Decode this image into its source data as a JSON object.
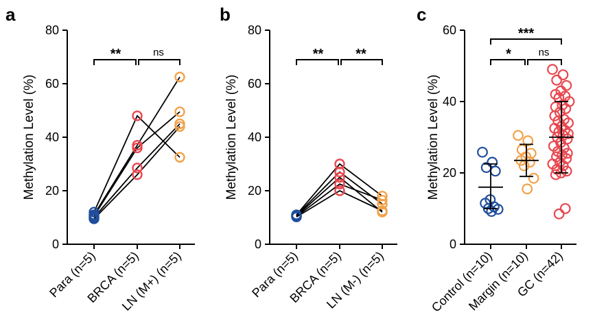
{
  "chart_data": [
    {
      "type": "scatter",
      "panel": "a",
      "ylabel": "Methylation Level (%)",
      "ylim": [
        0,
        80
      ],
      "yticks": [
        0,
        20,
        40,
        60,
        80
      ],
      "categories": [
        "Para (n=5)",
        "BRCA (n=5)",
        "LN (M+) (n=5)"
      ],
      "paired": true,
      "series": [
        {
          "name": "s1",
          "values": [
            12.0,
            48.0,
            32.5
          ]
        },
        {
          "name": "s2",
          "values": [
            11.0,
            37.0,
            62.5
          ]
        },
        {
          "name": "s3",
          "values": [
            10.5,
            36.0,
            49.5
          ]
        },
        {
          "name": "s4",
          "values": [
            10.0,
            28.5,
            45.0
          ]
        },
        {
          "name": "s5",
          "values": [
            9.5,
            26.0,
            44.0
          ]
        }
      ],
      "colors": [
        "#1f4e9c",
        "#e8474f",
        "#f2a24a"
      ],
      "significance": [
        {
          "from": 0,
          "to": 1,
          "label": "**",
          "level": 1
        },
        {
          "from": 1,
          "to": 2,
          "label": "ns",
          "level": 1
        }
      ]
    },
    {
      "type": "scatter",
      "panel": "b",
      "ylabel": "Methylation Level (%)",
      "ylim": [
        0,
        80
      ],
      "yticks": [
        0,
        20,
        40,
        60,
        80
      ],
      "categories": [
        "Para (n=5)",
        "BRCA (n=5)",
        "LN (M-) (n=5)"
      ],
      "paired": true,
      "series": [
        {
          "name": "s1",
          "values": [
            11.0,
            30.0,
            18.0
          ]
        },
        {
          "name": "s2",
          "values": [
            10.8,
            27.0,
            15.0
          ]
        },
        {
          "name": "s3",
          "values": [
            10.6,
            25.0,
            12.0
          ]
        },
        {
          "name": "s4",
          "values": [
            10.4,
            22.5,
            16.5
          ]
        },
        {
          "name": "s5",
          "values": [
            10.2,
            20.0,
            12.5
          ]
        }
      ],
      "colors": [
        "#1f4e9c",
        "#e8474f",
        "#f2a24a"
      ],
      "significance": [
        {
          "from": 0,
          "to": 1,
          "label": "**",
          "level": 1
        },
        {
          "from": 1,
          "to": 2,
          "label": "**",
          "level": 1
        }
      ]
    },
    {
      "type": "scatter",
      "panel": "c",
      "ylabel": "Methylation Level (%)",
      "ylim": [
        0,
        60
      ],
      "yticks": [
        0,
        20,
        40,
        60
      ],
      "categories": [
        "Control (n=10)",
        "Margin (n=10)",
        "GC (n=42)"
      ],
      "paired": false,
      "groups": [
        {
          "name": "Control (n=10)",
          "mean": 16.0,
          "sd_low": 10.0,
          "sd_high": 22.5,
          "values": [
            25.8,
            23.0,
            21.5,
            20.5,
            12.5,
            11.5,
            10.5,
            10.0,
            9.8,
            9.2
          ]
        },
        {
          "name": "Margin (n=10)",
          "mean": 23.5,
          "sd_low": 19.0,
          "sd_high": 28.0,
          "values": [
            30.5,
            29.0,
            26.5,
            25.5,
            24.5,
            23.5,
            23.0,
            22.0,
            18.5,
            15.5
          ]
        },
        {
          "name": "GC (n=42)",
          "mean": 30.0,
          "sd_low": 20.0,
          "sd_high": 40.0,
          "values": [
            49.0,
            47.5,
            46.0,
            44.5,
            43.0,
            42.0,
            41.5,
            41.0,
            40.0,
            39.0,
            38.5,
            38.0,
            37.0,
            36.0,
            35.0,
            34.5,
            34.0,
            33.0,
            32.5,
            32.0,
            31.5,
            31.0,
            30.5,
            30.0,
            29.5,
            28.5,
            27.5,
            27.0,
            26.0,
            25.5,
            25.0,
            24.5,
            24.0,
            23.0,
            22.5,
            22.0,
            21.0,
            20.5,
            20.0,
            19.5,
            10.0,
            8.5
          ]
        }
      ],
      "colors": [
        "#1f4e9c",
        "#f2a24a",
        "#e8474f"
      ],
      "significance": [
        {
          "from": 0,
          "to": 2,
          "label": "***",
          "level": 2
        },
        {
          "from": 0,
          "to": 1,
          "label": "*",
          "level": 1
        },
        {
          "from": 1,
          "to": 2,
          "label": "ns",
          "level": 1
        }
      ]
    }
  ]
}
